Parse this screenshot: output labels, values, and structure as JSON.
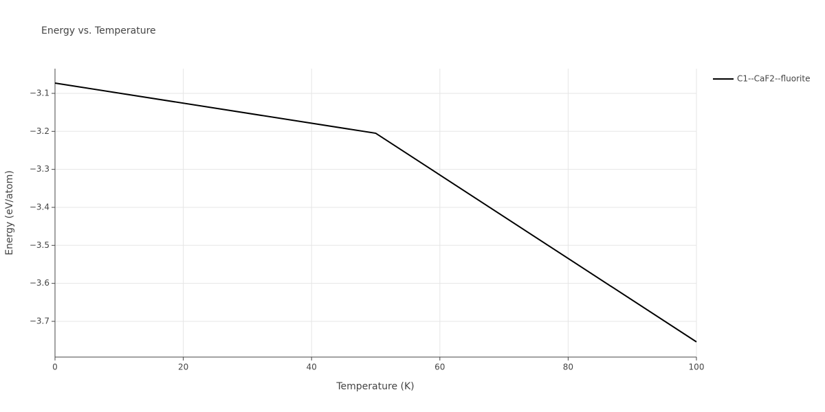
{
  "chart_data": {
    "type": "line",
    "title": "Energy vs. Temperature",
    "x_label": "Temperature (K)",
    "y_label": "Energy (eV/atom)",
    "x": [
      0,
      50,
      100
    ],
    "series": [
      {
        "name": "C1--CaF2--fluorite",
        "color": "#000000",
        "values": [
          -3.073,
          -3.205,
          -3.754
        ]
      }
    ],
    "xlim": [
      0,
      100
    ],
    "xticks": [
      0,
      20,
      40,
      60,
      80,
      100
    ],
    "ylim": [
      -3.794,
      -3.035
    ],
    "yticks": [
      {
        "value": -3.1,
        "label": "−3.1"
      },
      {
        "value": -3.2,
        "label": "−3.2"
      },
      {
        "value": -3.3,
        "label": "−3.3"
      },
      {
        "value": -3.4,
        "label": "−3.4"
      },
      {
        "value": -3.5,
        "label": "−3.5"
      },
      {
        "value": -3.6,
        "label": "−3.6"
      },
      {
        "value": -3.7,
        "label": "−3.7"
      }
    ],
    "grid": true,
    "legend": "right"
  }
}
